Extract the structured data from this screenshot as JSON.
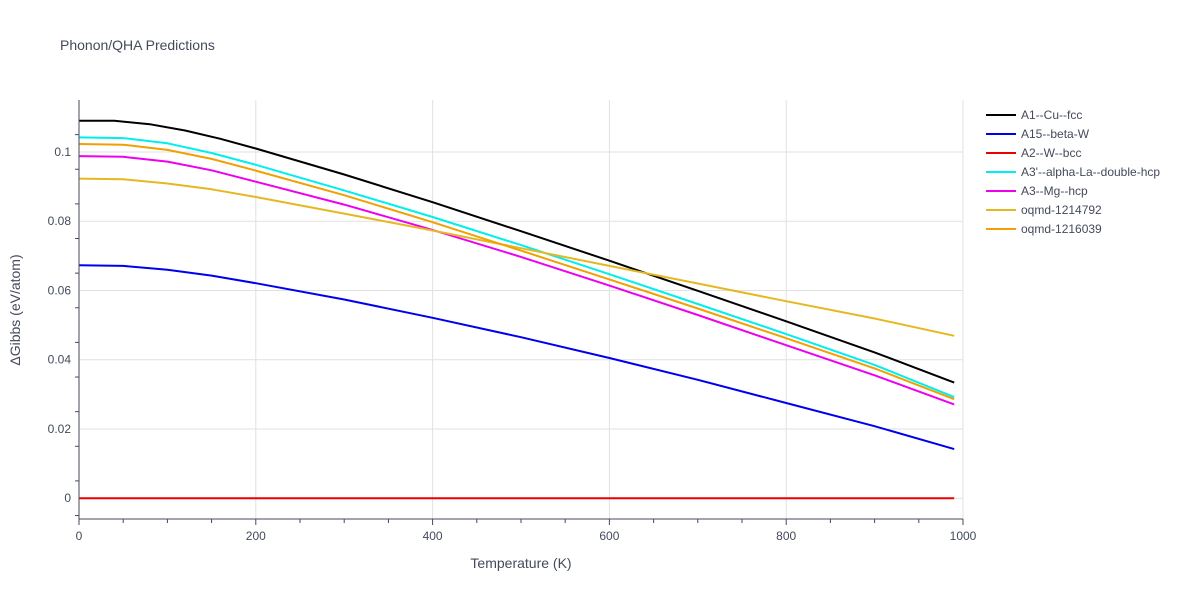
{
  "chart_data": {
    "type": "line",
    "title": "Phonon/QHA Predictions",
    "xlabel": "Temperature (K)",
    "ylabel": "ΔGibbs (eV/atom)",
    "xlim": [
      0,
      1000
    ],
    "ylim": [
      -0.006,
      0.115
    ],
    "xticks": [
      0,
      200,
      400,
      600,
      800,
      1000
    ],
    "xtick_labels": [
      "0",
      "200",
      "400",
      "600",
      "800",
      "1000"
    ],
    "yticks": [
      0,
      0.02,
      0.04,
      0.06,
      0.08,
      0.1
    ],
    "ytick_labels": [
      "0",
      "0.02",
      "0.04",
      "0.06",
      "0.08",
      "0.1"
    ],
    "grid": true,
    "legend_position": "top-right",
    "series": [
      {
        "name": "A1--Cu--fcc",
        "color": "#000000",
        "x": [
          0,
          40,
          80,
          120,
          160,
          200,
          300,
          400,
          500,
          600,
          700,
          800,
          900,
          990
        ],
        "y": [
          0.109,
          0.109,
          0.108,
          0.1062,
          0.1038,
          0.101,
          0.0935,
          0.0855,
          0.0771,
          0.0686,
          0.0599,
          0.0511,
          0.0421,
          0.0334
        ]
      },
      {
        "name": "A15--beta-W",
        "color": "#0000ee",
        "x": [
          0,
          50,
          100,
          150,
          200,
          300,
          400,
          500,
          600,
          700,
          800,
          900,
          990
        ],
        "y": [
          0.0673,
          0.0671,
          0.066,
          0.0643,
          0.0621,
          0.0574,
          0.0521,
          0.0465,
          0.0405,
          0.0342,
          0.0275,
          0.0208,
          0.0142
        ]
      },
      {
        "name": "A2--W--bcc",
        "color": "#ee0000",
        "x": [
          0,
          990
        ],
        "y": [
          0,
          0
        ]
      },
      {
        "name": "A3'--alpha-La--double-hcp",
        "color": "#00eeee",
        "x": [
          0,
          50,
          100,
          150,
          200,
          300,
          400,
          500,
          600,
          700,
          800,
          900,
          990
        ],
        "y": [
          0.1042,
          0.104,
          0.1025,
          0.0997,
          0.0963,
          0.0889,
          0.0812,
          0.0731,
          0.0647,
          0.0561,
          0.0474,
          0.0385,
          0.0292
        ]
      },
      {
        "name": "A3--Mg--hcp",
        "color": "#ee00ee",
        "x": [
          0,
          50,
          100,
          150,
          200,
          300,
          400,
          500,
          600,
          700,
          800,
          900,
          990
        ],
        "y": [
          0.0988,
          0.0986,
          0.0972,
          0.0947,
          0.0914,
          0.0848,
          0.0775,
          0.0697,
          0.0614,
          0.0529,
          0.0442,
          0.0355,
          0.0271
        ]
      },
      {
        "name": "oqmd-1214792",
        "color": "#e6b820",
        "x": [
          0,
          50,
          100,
          150,
          200,
          300,
          400,
          500,
          600,
          700,
          800,
          900,
          990
        ],
        "y": [
          0.0923,
          0.0921,
          0.0909,
          0.0892,
          0.087,
          0.0822,
          0.0773,
          0.0722,
          0.0671,
          0.062,
          0.0569,
          0.0519,
          0.0469
        ]
      },
      {
        "name": "oqmd-1216039",
        "color": "#f0a000",
        "x": [
          0,
          50,
          100,
          150,
          200,
          300,
          400,
          500,
          600,
          700,
          800,
          900,
          990
        ],
        "y": [
          0.1023,
          0.1021,
          0.1006,
          0.098,
          0.0946,
          0.0875,
          0.0797,
          0.0715,
          0.0632,
          0.0548,
          0.0462,
          0.0375,
          0.0286
        ]
      }
    ]
  }
}
